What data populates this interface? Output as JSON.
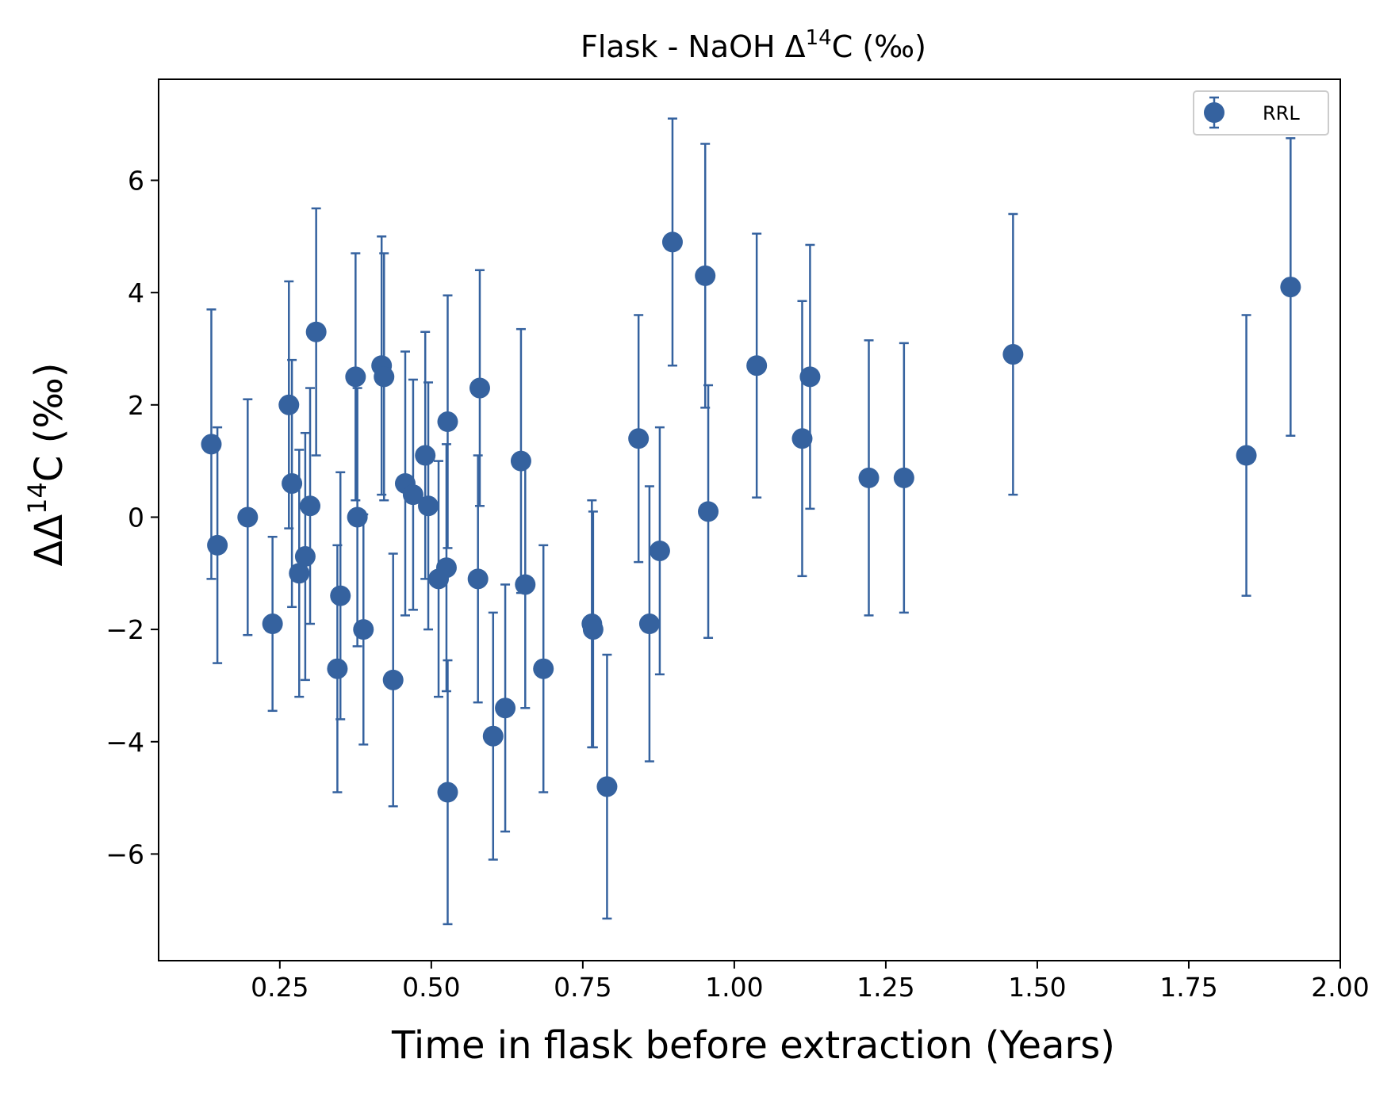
{
  "colors": {
    "series": "#35629f",
    "axis": "#000000",
    "background": "#ffffff",
    "legend_border": "#cccccc"
  },
  "chart_data": {
    "type": "scatter",
    "title": "Flask - NaOH Δ14C (‰)",
    "xlabel": "Time in flask before extraction (Years)",
    "ylabel": "ΔΔ14C (‰)",
    "xlim": [
      0.05,
      2.0
    ],
    "ylim": [
      -7.9,
      7.8
    ],
    "xticks": [
      0.25,
      0.5,
      0.75,
      1.0,
      1.25,
      1.5,
      1.75,
      2.0
    ],
    "xtick_labels": [
      "0.25",
      "0.50",
      "0.75",
      "1.00",
      "1.25",
      "1.50",
      "1.75",
      "2.00"
    ],
    "yticks": [
      -6,
      -4,
      -2,
      0,
      2,
      4,
      6
    ],
    "ytick_labels": [
      "−6",
      "−4",
      "−2",
      "0",
      "2",
      "4",
      "6"
    ],
    "grid": false,
    "legend": {
      "position": "top-right",
      "entries": [
        "RRL"
      ]
    },
    "series": [
      {
        "name": "RRL",
        "marker": "circle",
        "error_bars": true,
        "points": [
          {
            "x": 0.137,
            "y": 1.3,
            "err": 2.4
          },
          {
            "x": 0.147,
            "y": -0.5,
            "err": 2.1
          },
          {
            "x": 0.197,
            "y": 0.0,
            "err": 2.1
          },
          {
            "x": 0.238,
            "y": -1.9,
            "err": 1.55
          },
          {
            "x": 0.265,
            "y": 2.0,
            "err": 2.2
          },
          {
            "x": 0.27,
            "y": 0.6,
            "err": 2.2
          },
          {
            "x": 0.282,
            "y": -1.0,
            "err": 2.2
          },
          {
            "x": 0.292,
            "y": -0.7,
            "err": 2.2
          },
          {
            "x": 0.3,
            "y": 0.2,
            "err": 2.1
          },
          {
            "x": 0.31,
            "y": 3.3,
            "err": 2.2
          },
          {
            "x": 0.345,
            "y": -2.7,
            "err": 2.2
          },
          {
            "x": 0.35,
            "y": -1.4,
            "err": 2.2
          },
          {
            "x": 0.375,
            "y": 2.5,
            "err": 2.2
          },
          {
            "x": 0.378,
            "y": 0.0,
            "err": 2.3
          },
          {
            "x": 0.388,
            "y": -2.0,
            "err": 2.05
          },
          {
            "x": 0.418,
            "y": 2.7,
            "err": 2.3
          },
          {
            "x": 0.422,
            "y": 2.5,
            "err": 2.2
          },
          {
            "x": 0.437,
            "y": -2.9,
            "err": 2.25
          },
          {
            "x": 0.457,
            "y": 0.6,
            "err": 2.35
          },
          {
            "x": 0.47,
            "y": 0.4,
            "err": 2.05
          },
          {
            "x": 0.49,
            "y": 1.1,
            "err": 2.2
          },
          {
            "x": 0.495,
            "y": 0.2,
            "err": 2.2
          },
          {
            "x": 0.512,
            "y": -1.1,
            "err": 2.1
          },
          {
            "x": 0.525,
            "y": -0.9,
            "err": 2.2
          },
          {
            "x": 0.527,
            "y": 1.7,
            "err": 2.25
          },
          {
            "x": 0.527,
            "y": -4.9,
            "err": 2.35
          },
          {
            "x": 0.577,
            "y": -1.1,
            "err": 2.2
          },
          {
            "x": 0.58,
            "y": 2.3,
            "err": 2.1
          },
          {
            "x": 0.602,
            "y": -3.9,
            "err": 2.2
          },
          {
            "x": 0.622,
            "y": -3.4,
            "err": 2.2
          },
          {
            "x": 0.648,
            "y": 1.0,
            "err": 2.35
          },
          {
            "x": 0.655,
            "y": -1.2,
            "err": 2.2
          },
          {
            "x": 0.685,
            "y": -2.7,
            "err": 2.2
          },
          {
            "x": 0.765,
            "y": -1.9,
            "err": 2.2
          },
          {
            "x": 0.767,
            "y": -2.0,
            "err": 2.1
          },
          {
            "x": 0.79,
            "y": -4.8,
            "err": 2.35
          },
          {
            "x": 0.842,
            "y": 1.4,
            "err": 2.2
          },
          {
            "x": 0.86,
            "y": -1.9,
            "err": 2.45
          },
          {
            "x": 0.877,
            "y": -0.6,
            "err": 2.2
          },
          {
            "x": 0.898,
            "y": 4.9,
            "err": 2.2
          },
          {
            "x": 0.952,
            "y": 4.3,
            "err": 2.35
          },
          {
            "x": 0.957,
            "y": 0.1,
            "err": 2.25
          },
          {
            "x": 1.037,
            "y": 2.7,
            "err": 2.35
          },
          {
            "x": 1.112,
            "y": 1.4,
            "err": 2.45
          },
          {
            "x": 1.125,
            "y": 2.5,
            "err": 2.35
          },
          {
            "x": 1.222,
            "y": 0.7,
            "err": 2.45
          },
          {
            "x": 1.28,
            "y": 0.7,
            "err": 2.4
          },
          {
            "x": 1.46,
            "y": 2.9,
            "err": 2.5
          },
          {
            "x": 1.845,
            "y": 1.1,
            "err": 2.5
          },
          {
            "x": 1.918,
            "y": 4.1,
            "err": 2.65
          }
        ]
      }
    ]
  }
}
